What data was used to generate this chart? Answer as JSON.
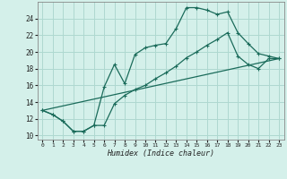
{
  "xlabel": "Humidex (Indice chaleur)",
  "background_color": "#d4f0ea",
  "grid_color": "#aed8d0",
  "line_color": "#1a6b5a",
  "xlim": [
    -0.5,
    23.5
  ],
  "ylim": [
    9.5,
    26.0
  ],
  "xticks": [
    0,
    1,
    2,
    3,
    4,
    5,
    6,
    7,
    8,
    9,
    10,
    11,
    12,
    13,
    14,
    15,
    16,
    17,
    18,
    19,
    20,
    21,
    22,
    23
  ],
  "yticks": [
    10,
    12,
    14,
    16,
    18,
    20,
    22,
    24
  ],
  "line1_x": [
    0,
    1,
    2,
    3,
    4,
    5,
    6,
    7,
    8,
    9,
    10,
    11,
    12,
    13,
    14,
    15,
    16,
    17,
    18,
    19,
    20,
    21,
    22,
    23
  ],
  "line1_y": [
    13.0,
    12.5,
    11.7,
    10.5,
    10.5,
    11.2,
    15.8,
    18.5,
    16.2,
    19.7,
    20.5,
    20.8,
    21.0,
    22.8,
    25.3,
    25.3,
    25.0,
    24.5,
    24.8,
    22.3,
    21.0,
    19.8,
    19.5,
    19.2
  ],
  "line2_x": [
    0,
    1,
    2,
    3,
    4,
    5,
    6,
    7,
    8,
    9,
    10,
    11,
    12,
    13,
    14,
    15,
    16,
    17,
    18,
    19,
    20,
    21,
    22,
    23
  ],
  "line2_y": [
    13.0,
    12.5,
    11.7,
    10.5,
    10.5,
    11.2,
    11.2,
    13.8,
    14.8,
    15.5,
    16.0,
    16.8,
    17.5,
    18.3,
    19.3,
    20.0,
    20.8,
    21.5,
    22.3,
    19.5,
    18.5,
    18.0,
    19.2,
    19.2
  ],
  "line3_x": [
    0,
    23
  ],
  "line3_y": [
    13.0,
    19.2
  ]
}
